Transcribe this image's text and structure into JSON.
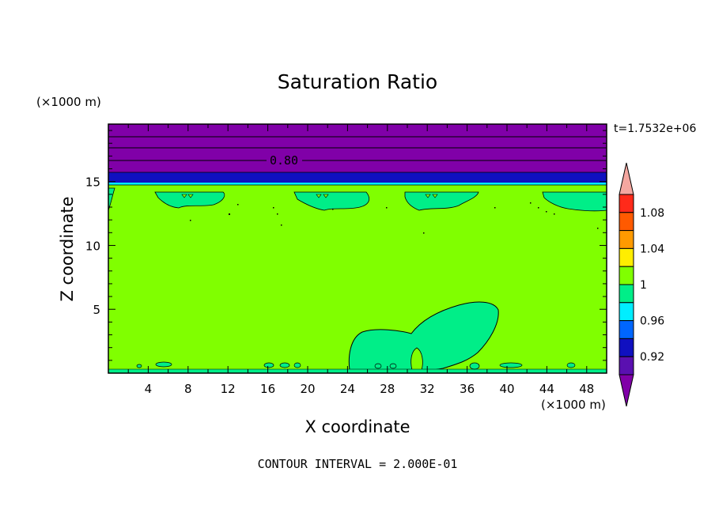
{
  "chart_data": {
    "type": "contour",
    "title": "Saturation Ratio",
    "time_label": "t=1.7532e+06",
    "xlabel": "X coordinate",
    "ylabel": "Z coordinate",
    "x_unit": "(×1000 m)",
    "y_unit": "(×1000 m)",
    "xlim": [
      0,
      50
    ],
    "ylim": [
      0,
      19.5
    ],
    "x_ticks": [
      4,
      8,
      12,
      16,
      20,
      24,
      28,
      32,
      36,
      40,
      44,
      48
    ],
    "y_ticks": [
      5,
      10,
      15
    ],
    "contour_interval_text": "CONTOUR INTERVAL = 2.000E-01",
    "contour_line_label": "0.80",
    "colorbar": {
      "labels": [
        "1.08",
        "1.04",
        "1",
        "0.96",
        "0.92"
      ],
      "levels_top_to_bottom": [
        {
          "range": "> 1.10",
          "color": "#f4a7a0"
        },
        {
          "range": "1.08-1.10",
          "color": "#ff2a1a"
        },
        {
          "range": "1.06-1.08",
          "color": "#ff5a00"
        },
        {
          "range": "1.04-1.06",
          "color": "#ff9a00"
        },
        {
          "range": "1.02-1.04",
          "color": "#ffee00"
        },
        {
          "range": "1.00-1.02",
          "color": "#80ff00"
        },
        {
          "range": "0.98-1.00",
          "color": "#00ee88"
        },
        {
          "range": "0.96-0.98",
          "color": "#00eeff"
        },
        {
          "range": "0.94-0.96",
          "color": "#0066ff"
        },
        {
          "range": "0.92-0.94",
          "color": "#1010c0"
        },
        {
          "range": "0.90-0.92",
          "color": "#5a10b0"
        },
        {
          "range": "< 0.90",
          "color": "#8000a8"
        }
      ]
    },
    "regions": [
      {
        "name": "upper-layer",
        "z_range": [
          17,
          19.5
        ],
        "value_band": "< 0.90",
        "color": "#8000a8"
      },
      {
        "name": "blue-layer",
        "z_range": [
          15.5,
          17
        ],
        "value_band": "0.92-0.94",
        "color": "#1010c0"
      },
      {
        "name": "cyan-layer",
        "z_range": [
          15.2,
          15.5
        ],
        "value_band": "0.96-0.98",
        "color": "#00eeff"
      },
      {
        "name": "main-field",
        "z_range": [
          0,
          15.2
        ],
        "value_band": "1.00-1.02",
        "color": "#80ff00"
      },
      {
        "name": "lower-patch",
        "x_range": [
          22,
          39
        ],
        "z_range": [
          0,
          5.8
        ],
        "value_band": "0.98-1.00",
        "color": "#00ee88"
      },
      {
        "name": "cloud-top-patches",
        "z_range": [
          13.2,
          14.6
        ],
        "x_centers": [
          8.5,
          25,
          39,
          48
        ],
        "value_band": "0.98-1.00",
        "color": "#00ee88"
      }
    ]
  }
}
